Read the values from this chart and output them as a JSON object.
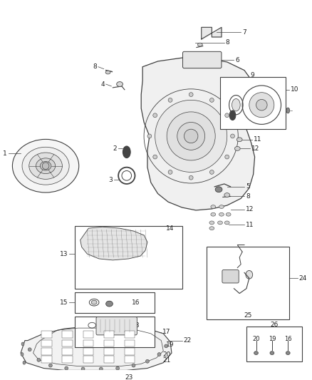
{
  "bg_color": "#ffffff",
  "line_color": "#404040",
  "text_color": "#222222",
  "figsize": [
    4.38,
    5.33
  ],
  "dpi": 100
}
